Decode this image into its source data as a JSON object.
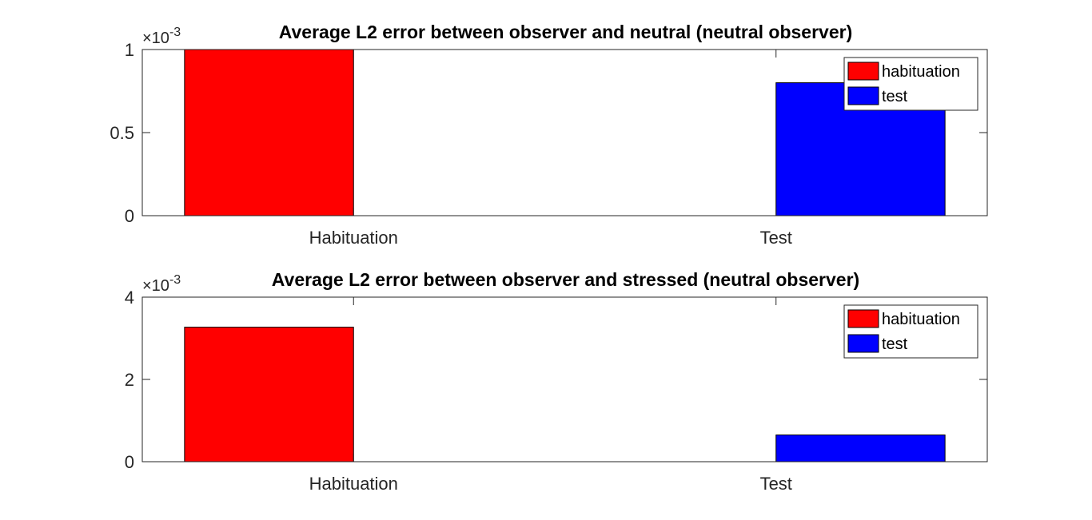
{
  "chart_data": [
    {
      "type": "bar",
      "title": "Average L2 error between observer and neutral (neutral observer)",
      "categories": [
        "Habituation",
        "Test"
      ],
      "series": [
        {
          "name": "habituation",
          "values": [
            0.001,
            0
          ],
          "color": "#ff0000"
        },
        {
          "name": "test",
          "values": [
            0,
            0.0008
          ],
          "color": "#0000ff"
        }
      ],
      "ylim": [
        0,
        0.001
      ],
      "yticks": [
        "0",
        "0.5",
        "1"
      ],
      "y_exponent_label": "×10",
      "y_exponent": "-3",
      "xlabel": "",
      "ylabel": "",
      "legend": [
        "habituation",
        "test"
      ],
      "legend_location": "top-right",
      "grid": false
    },
    {
      "type": "bar",
      "title": "Average L2 error between observer and stressed (neutral observer)",
      "categories": [
        "Habituation",
        "Test"
      ],
      "series": [
        {
          "name": "habituation",
          "values": [
            0.00327,
            0
          ],
          "color": "#ff0000"
        },
        {
          "name": "test",
          "values": [
            0,
            0.00065
          ],
          "color": "#0000ff"
        }
      ],
      "ylim": [
        0,
        0.004
      ],
      "yticks": [
        "0",
        "2",
        "4"
      ],
      "y_exponent_label": "×10",
      "y_exponent": "-3",
      "xlabel": "",
      "ylabel": "",
      "legend": [
        "habituation",
        "test"
      ],
      "legend_location": "top-right",
      "grid": false
    }
  ]
}
